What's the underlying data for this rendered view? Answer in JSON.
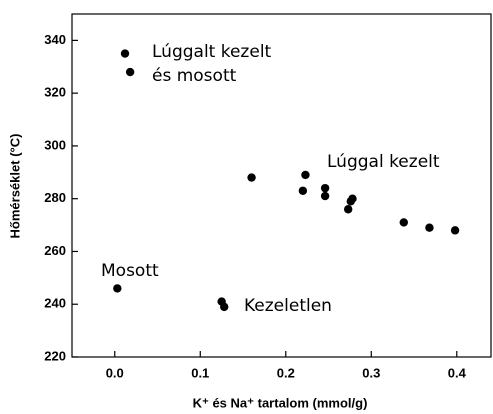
{
  "chart_data": {
    "type": "scatter",
    "xlabel": "K⁺ és Na⁺ tartalom (mmol/g)",
    "ylabel": "Hőmérséklet (°C)",
    "x": [
      0.012,
      0.018,
      0.003,
      0.125,
      0.128,
      0.16,
      0.22,
      0.223,
      0.246,
      0.246,
      0.273,
      0.276,
      0.278,
      0.338,
      0.368,
      0.398
    ],
    "values": [
      335,
      328,
      246,
      241,
      239,
      288,
      283,
      289,
      284,
      281,
      276,
      279,
      280,
      271,
      269,
      268
    ],
    "color": "#000000",
    "xlim": [
      -0.05,
      0.44
    ],
    "xticks": [
      {
        "value": 0,
        "label": "0.0"
      },
      0.1,
      0.2,
      0.3,
      0.4
    ],
    "ylim": [
      220,
      350
    ],
    "yticks": [
      220,
      240,
      260,
      280,
      300,
      320,
      340
    ],
    "annotations": [
      "Lúggalt kezelt",
      "és mosott",
      "Lúggal kezelt",
      "Mosott",
      "Kezeletlen"
    ]
  }
}
